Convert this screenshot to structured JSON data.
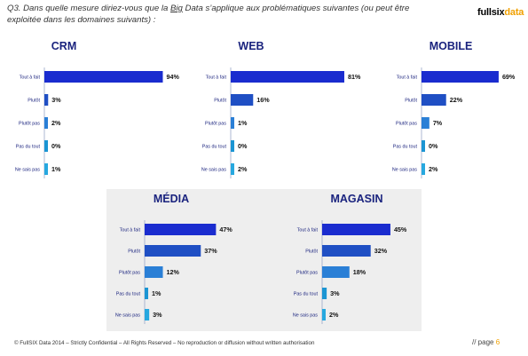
{
  "header": {
    "question_prefix": "Q3. Dans quelle mesure diriez-vous que la ",
    "question_underlined": "Big",
    "question_suffix": " Data s’applique aux problématiques suivantes (ou peut être exploitée dans les domaines suivants) :",
    "logo_part1": "fullsix",
    "logo_part2": "data"
  },
  "colors": {
    "tout_a_fait": "#1a2ccf",
    "plutot": "#1f4fc4",
    "plutot_pas": "#2a7fd6",
    "pas_du_tout": "#1b95d3",
    "ne_sais_pas": "#27a8df",
    "title": "#1a237e",
    "label": "#1a237e"
  },
  "chart_data": [
    {
      "type": "bar",
      "title": "CRM",
      "categories": [
        "Tout à fait",
        "Plutôt",
        "Plutôt pas",
        "Pas du tout",
        "Ne sais pas"
      ],
      "values": [
        94,
        3,
        2,
        0,
        1
      ],
      "value_labels": [
        "94%",
        "3%",
        "2%",
        "0%",
        "1%"
      ],
      "xlim": [
        0,
        100
      ]
    },
    {
      "type": "bar",
      "title": "WEB",
      "categories": [
        "Tout à fait",
        "Plutôt",
        "Plutôt pas",
        "Pas du tout",
        "Ne sais pas"
      ],
      "values": [
        81,
        16,
        1,
        0,
        2
      ],
      "value_labels": [
        "81%",
        "16%",
        "1%",
        "0%",
        "2%"
      ],
      "xlim": [
        0,
        100
      ]
    },
    {
      "type": "bar",
      "title": "MOBILE",
      "categories": [
        "Tout à fait",
        "Plutôt",
        "Plutôt pas",
        "Pas du tout",
        "Ne sais pas"
      ],
      "values": [
        69,
        22,
        7,
        0,
        2
      ],
      "value_labels": [
        "69%",
        "22%",
        "7%",
        "0%",
        "2%"
      ],
      "xlim": [
        0,
        100
      ]
    },
    {
      "type": "bar",
      "title": "MÉDIA",
      "categories": [
        "Tout à fait",
        "Plutôt",
        "Plutôt pas",
        "Pas du tout",
        "Ne sais pas"
      ],
      "values": [
        47,
        37,
        12,
        1,
        3
      ],
      "value_labels": [
        "47%",
        "37%",
        "12%",
        "1%",
        "3%"
      ],
      "xlim": [
        0,
        100
      ]
    },
    {
      "type": "bar",
      "title": "MAGASIN",
      "categories": [
        "Tout à fait",
        "Plutôt",
        "Plutôt pas",
        "Pas du tout",
        "Ne sais pas"
      ],
      "values": [
        45,
        32,
        18,
        3,
        2
      ],
      "value_labels": [
        "45%",
        "32%",
        "18%",
        "3%",
        "2%"
      ],
      "xlim": [
        0,
        100
      ]
    }
  ],
  "footer": {
    "text": "© FullSIX Data 2014 – Strictly Confidential – All Rights Reserved – No reproduction or diffusion without written authorisation",
    "page_prefix": "// page ",
    "page_number": "6"
  }
}
